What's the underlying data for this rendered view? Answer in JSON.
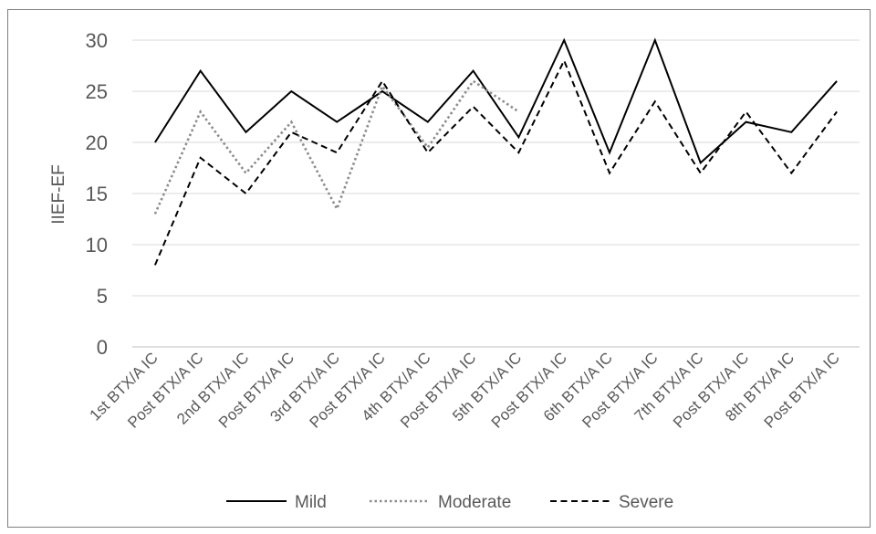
{
  "chart_data": {
    "type": "line",
    "title": "",
    "xlabel": "",
    "ylabel": "IIEF-EF",
    "ylim": [
      0,
      30
    ],
    "yticks": [
      0,
      5,
      10,
      15,
      20,
      25,
      30
    ],
    "grid": true,
    "legend_position": "bottom",
    "categories": [
      "1st BTX/A IC",
      "Post BTX/A IC",
      "2nd BTX/A IC",
      "Post BTX/A IC",
      "3rd BTX/A IC",
      "Post BTX/A IC",
      "4th BTX/A IC",
      "Post BTX/A IC",
      "5th BTX/A IC",
      "Post BTX/A IC",
      "6th BTX/A IC",
      "Post BTX/A IC",
      "7th BTX/A IC",
      "Post BTX/A IC",
      "8th BTX/A IC",
      "Post BTX/A IC"
    ],
    "series": [
      {
        "name": "Mild",
        "style": "solid",
        "color": "#000000",
        "values": [
          20,
          27,
          21,
          25,
          22,
          25,
          22,
          27,
          20.5,
          30,
          19,
          30,
          18,
          22,
          21,
          26
        ]
      },
      {
        "name": "Moderate",
        "style": "dotted",
        "color": "#8c8c8c",
        "values": [
          13,
          23,
          17,
          22,
          13.5,
          25.5,
          19.5,
          26,
          23,
          null,
          null,
          null,
          null,
          null,
          null,
          null
        ]
      },
      {
        "name": "Severe",
        "style": "dashed",
        "color": "#000000",
        "values": [
          8,
          18.5,
          15,
          21,
          19,
          26,
          19,
          23.5,
          19,
          28,
          17,
          24,
          17,
          23,
          17,
          23
        ]
      }
    ]
  }
}
